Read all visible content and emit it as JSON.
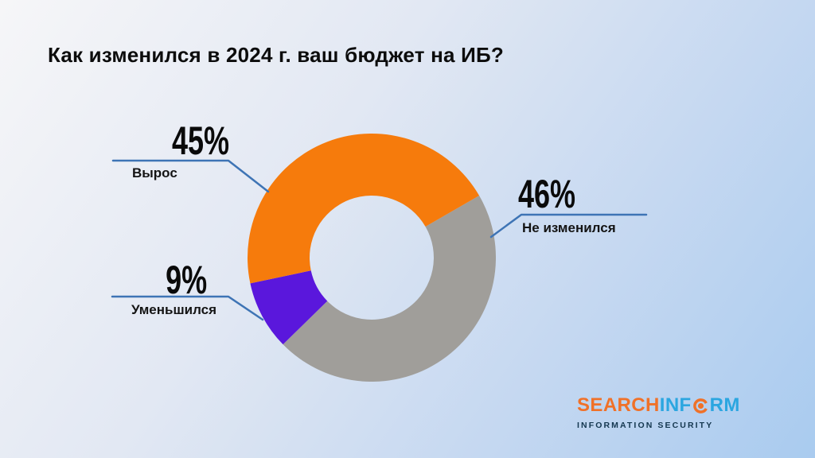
{
  "title": "Как изменился в 2024 г. ваш бюджет на ИБ?",
  "chart_data": {
    "type": "pie",
    "subtype": "donut",
    "unit": "%",
    "title": "Как изменился в 2024 г. ваш бюджет на ИБ?",
    "segments": [
      {
        "label": "Вырос",
        "value": 45,
        "pct_text": "45%",
        "color": "#F67B0C"
      },
      {
        "label": "Не изменился",
        "value": 46,
        "pct_text": "46%",
        "color": "#A09E9A"
      },
      {
        "label": "Уменьшился",
        "value": 9,
        "pct_text": "9%",
        "color": "#5A17DC"
      }
    ],
    "layout": {
      "start_angle_deg": 60,
      "draw_order": [
        1,
        2,
        0
      ],
      "legend": "callout-labels",
      "callout_color": "#3E74B5"
    }
  },
  "logo": {
    "part1": "SEARCH",
    "part2": "INF",
    "part3": "RM",
    "tagline": "INFORMATION SECURITY",
    "orange": "#F07128",
    "blue": "#2BA6E0",
    "tagline_color": "#14374F"
  }
}
